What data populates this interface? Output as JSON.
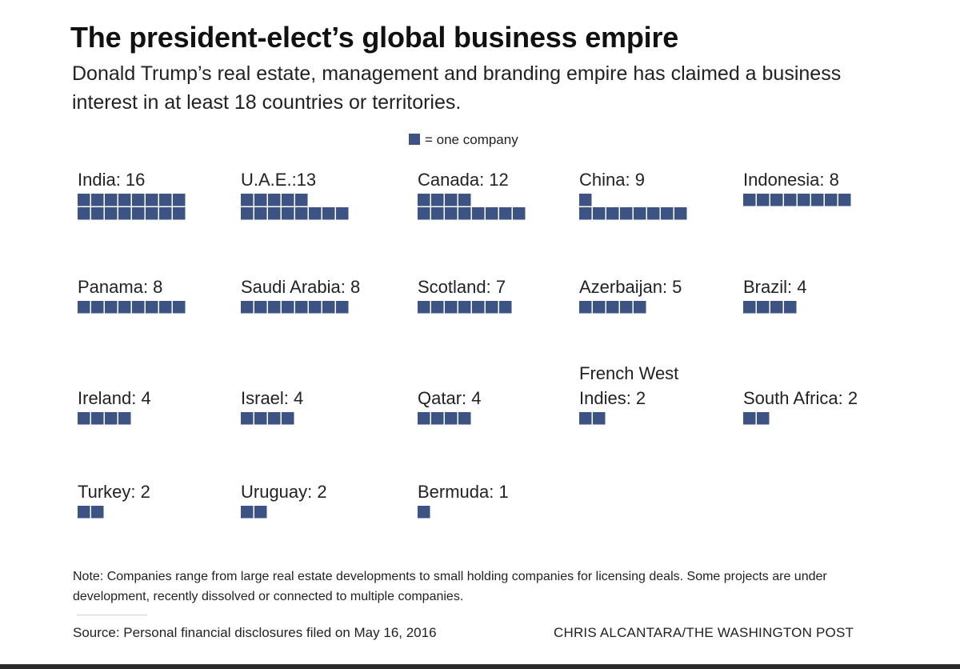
{
  "header": {
    "title": "The president-elect’s global business empire",
    "subtitle": "Donald Trump’s real estate, management and branding empire has claimed a business interest in at least 18 countries or territories."
  },
  "legend": {
    "label": "= one company"
  },
  "chart_data": {
    "type": "waffle",
    "title": "The president-elect’s global business empire",
    "unit": "one company",
    "color": "#3d5383",
    "categories": [
      {
        "name": "India",
        "label": "India: 16",
        "value": 16
      },
      {
        "name": "U.A.E.",
        "label": "U.A.E.:13",
        "value": 13
      },
      {
        "name": "Canada",
        "label": "Canada: 12",
        "value": 12
      },
      {
        "name": "China",
        "label": "China: 9",
        "value": 9
      },
      {
        "name": "Indonesia",
        "label": "Indonesia: 8",
        "value": 8
      },
      {
        "name": "Panama",
        "label": "Panama: 8",
        "value": 8
      },
      {
        "name": "Saudi Arabia",
        "label": "Saudi Arabia: 8",
        "value": 8
      },
      {
        "name": "Scotland",
        "label": "Scotland: 7",
        "value": 7
      },
      {
        "name": "Azerbaijan",
        "label": "Azerbaijan: 5",
        "value": 5
      },
      {
        "name": "Brazil",
        "label": "Brazil: 4",
        "value": 4
      },
      {
        "name": "Ireland",
        "label": "Ireland: 4",
        "value": 4
      },
      {
        "name": "Israel",
        "label": "Israel: 4",
        "value": 4
      },
      {
        "name": "Qatar",
        "label": "Qatar: 4",
        "value": 4
      },
      {
        "name": "French West Indies",
        "label": "French West Indies: 2",
        "label_lines": [
          "French West",
          "Indies: 2"
        ],
        "value": 2
      },
      {
        "name": "South Africa",
        "label": "South Africa: 2",
        "value": 2
      },
      {
        "name": "Turkey",
        "label": "Turkey: 2",
        "value": 2
      },
      {
        "name": "Uruguay",
        "label": "Uruguay: 2",
        "value": 2
      },
      {
        "name": "Bermuda",
        "label": "Bermuda: 1",
        "value": 1
      }
    ]
  },
  "footer": {
    "note": "Note: Companies range from large real estate developments to small holding companies for licensing deals. Some projects are under development, recently dissolved or connected to multiple companies.",
    "source": "Source: Personal financial disclosures filed on May 16, 2016",
    "credit": "CHRIS ALCANTARA/THE WASHINGTON POST"
  }
}
